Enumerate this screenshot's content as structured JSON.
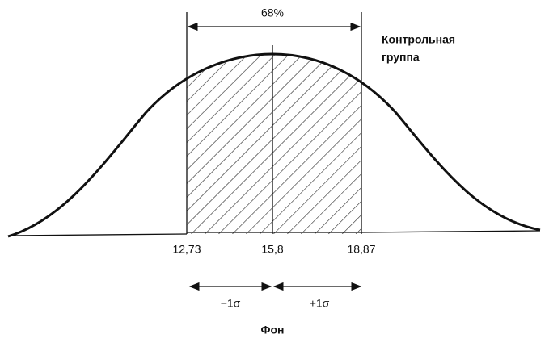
{
  "percent_label": "68%",
  "curve_label": [
    "Контрольная",
    "группа"
  ],
  "x_labels": [
    "12,73",
    "15,8",
    "18,87"
  ],
  "sigma_labels": [
    "−1σ",
    "+1σ"
  ],
  "axis_label": "Фон"
}
